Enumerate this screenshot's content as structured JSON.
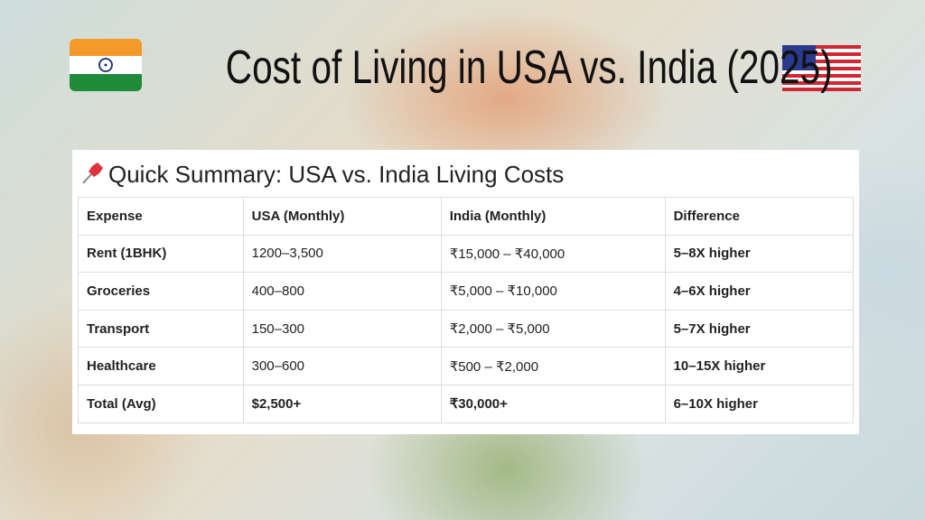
{
  "header": {
    "title": "Cost of Living in USA vs. India (2025)"
  },
  "summary": {
    "title": "Quick Summary: USA vs. India Living Costs"
  },
  "table": {
    "columns": [
      "Expense",
      "USA (Monthly)",
      "India (Monthly)",
      "Difference"
    ],
    "rows": [
      [
        "Rent (1BHK)",
        "1200–3,500",
        "₹15,000 – ₹40,000",
        "5–8X higher"
      ],
      [
        "Groceries",
        "400–800",
        "₹5,000 – ₹10,000",
        "4–6X higher"
      ],
      [
        "Transport",
        "150–300",
        "₹2,000 – ₹5,000",
        "5–7X higher"
      ],
      [
        "Healthcare",
        "300–600",
        "₹500 – ₹2,000",
        "10–15X higher"
      ],
      [
        "Total (Avg)",
        "$2,500+",
        "₹30,000+",
        "6–10X higher"
      ]
    ]
  }
}
